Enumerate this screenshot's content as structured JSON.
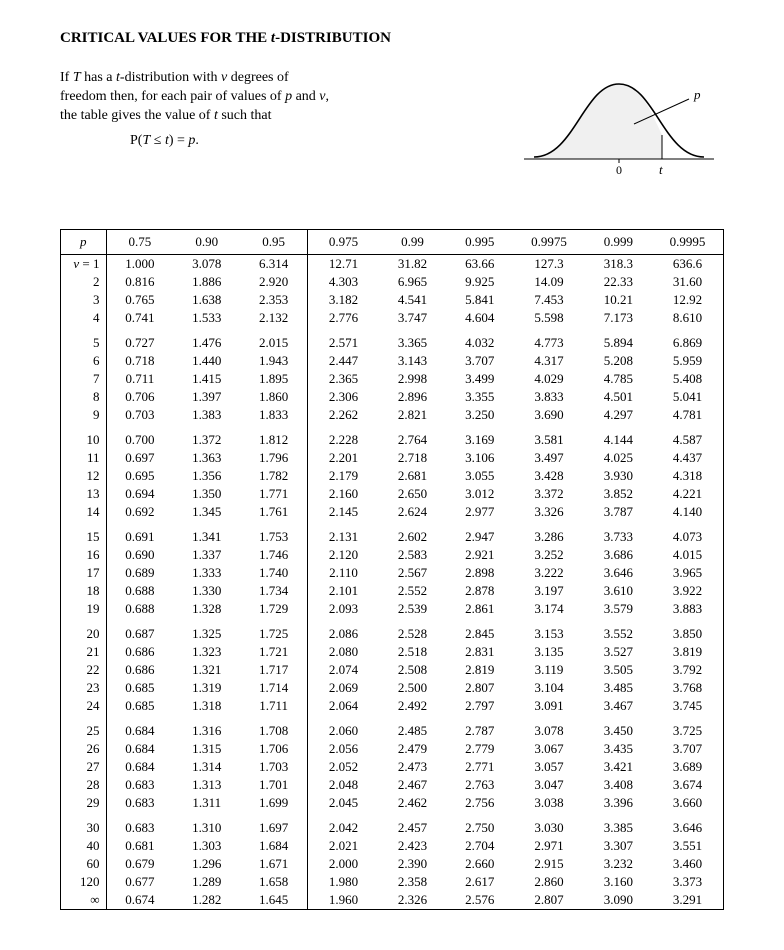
{
  "title_html": "CRITICAL VALUES FOR THE <i>t</i>-DISTRIBUTION",
  "intro": {
    "line1_html": "If <i>T</i> has a <i>t</i>-distribution with <i>v</i> degrees of",
    "line2_html": "freedom then, for each pair of values of <i>p</i> and <i>v</i>,",
    "line3_html": "the table gives the value of <i>t</i> such that",
    "equation_html": "P(<i>T</i> ≤ <i>t</i>) = <i>p</i>."
  },
  "curve": {
    "axis_0": "0",
    "axis_t": "t",
    "label_p": "p",
    "stroke": "#000000",
    "fill": "none"
  },
  "table": {
    "header_p": "p",
    "columns": [
      "0.75",
      "0.90",
      "0.95",
      "0.975",
      "0.99",
      "0.995",
      "0.9975",
      "0.999",
      "0.9995"
    ],
    "nu_prefix_html": "<span class=\"nu-label\">v</span> = ",
    "infinity": "∞",
    "groups": [
      {
        "rows": [
          {
            "nu": "1",
            "v": [
              "1.000",
              "3.078",
              "6.314",
              "12.71",
              "31.82",
              "63.66",
              "127.3",
              "318.3",
              "636.6"
            ]
          },
          {
            "nu": "2",
            "v": [
              "0.816",
              "1.886",
              "2.920",
              "4.303",
              "6.965",
              "9.925",
              "14.09",
              "22.33",
              "31.60"
            ]
          },
          {
            "nu": "3",
            "v": [
              "0.765",
              "1.638",
              "2.353",
              "3.182",
              "4.541",
              "5.841",
              "7.453",
              "10.21",
              "12.92"
            ]
          },
          {
            "nu": "4",
            "v": [
              "0.741",
              "1.533",
              "2.132",
              "2.776",
              "3.747",
              "4.604",
              "5.598",
              "7.173",
              "8.610"
            ]
          }
        ]
      },
      {
        "rows": [
          {
            "nu": "5",
            "v": [
              "0.727",
              "1.476",
              "2.015",
              "2.571",
              "3.365",
              "4.032",
              "4.773",
              "5.894",
              "6.869"
            ]
          },
          {
            "nu": "6",
            "v": [
              "0.718",
              "1.440",
              "1.943",
              "2.447",
              "3.143",
              "3.707",
              "4.317",
              "5.208",
              "5.959"
            ]
          },
          {
            "nu": "7",
            "v": [
              "0.711",
              "1.415",
              "1.895",
              "2.365",
              "2.998",
              "3.499",
              "4.029",
              "4.785",
              "5.408"
            ]
          },
          {
            "nu": "8",
            "v": [
              "0.706",
              "1.397",
              "1.860",
              "2.306",
              "2.896",
              "3.355",
              "3.833",
              "4.501",
              "5.041"
            ]
          },
          {
            "nu": "9",
            "v": [
              "0.703",
              "1.383",
              "1.833",
              "2.262",
              "2.821",
              "3.250",
              "3.690",
              "4.297",
              "4.781"
            ]
          }
        ]
      },
      {
        "rows": [
          {
            "nu": "10",
            "v": [
              "0.700",
              "1.372",
              "1.812",
              "2.228",
              "2.764",
              "3.169",
              "3.581",
              "4.144",
              "4.587"
            ]
          },
          {
            "nu": "11",
            "v": [
              "0.697",
              "1.363",
              "1.796",
              "2.201",
              "2.718",
              "3.106",
              "3.497",
              "4.025",
              "4.437"
            ]
          },
          {
            "nu": "12",
            "v": [
              "0.695",
              "1.356",
              "1.782",
              "2.179",
              "2.681",
              "3.055",
              "3.428",
              "3.930",
              "4.318"
            ]
          },
          {
            "nu": "13",
            "v": [
              "0.694",
              "1.350",
              "1.771",
              "2.160",
              "2.650",
              "3.012",
              "3.372",
              "3.852",
              "4.221"
            ]
          },
          {
            "nu": "14",
            "v": [
              "0.692",
              "1.345",
              "1.761",
              "2.145",
              "2.624",
              "2.977",
              "3.326",
              "3.787",
              "4.140"
            ]
          }
        ]
      },
      {
        "rows": [
          {
            "nu": "15",
            "v": [
              "0.691",
              "1.341",
              "1.753",
              "2.131",
              "2.602",
              "2.947",
              "3.286",
              "3.733",
              "4.073"
            ]
          },
          {
            "nu": "16",
            "v": [
              "0.690",
              "1.337",
              "1.746",
              "2.120",
              "2.583",
              "2.921",
              "3.252",
              "3.686",
              "4.015"
            ]
          },
          {
            "nu": "17",
            "v": [
              "0.689",
              "1.333",
              "1.740",
              "2.110",
              "2.567",
              "2.898",
              "3.222",
              "3.646",
              "3.965"
            ]
          },
          {
            "nu": "18",
            "v": [
              "0.688",
              "1.330",
              "1.734",
              "2.101",
              "2.552",
              "2.878",
              "3.197",
              "3.610",
              "3.922"
            ]
          },
          {
            "nu": "19",
            "v": [
              "0.688",
              "1.328",
              "1.729",
              "2.093",
              "2.539",
              "2.861",
              "3.174",
              "3.579",
              "3.883"
            ]
          }
        ]
      },
      {
        "rows": [
          {
            "nu": "20",
            "v": [
              "0.687",
              "1.325",
              "1.725",
              "2.086",
              "2.528",
              "2.845",
              "3.153",
              "3.552",
              "3.850"
            ]
          },
          {
            "nu": "21",
            "v": [
              "0.686",
              "1.323",
              "1.721",
              "2.080",
              "2.518",
              "2.831",
              "3.135",
              "3.527",
              "3.819"
            ]
          },
          {
            "nu": "22",
            "v": [
              "0.686",
              "1.321",
              "1.717",
              "2.074",
              "2.508",
              "2.819",
              "3.119",
              "3.505",
              "3.792"
            ]
          },
          {
            "nu": "23",
            "v": [
              "0.685",
              "1.319",
              "1.714",
              "2.069",
              "2.500",
              "2.807",
              "3.104",
              "3.485",
              "3.768"
            ]
          },
          {
            "nu": "24",
            "v": [
              "0.685",
              "1.318",
              "1.711",
              "2.064",
              "2.492",
              "2.797",
              "3.091",
              "3.467",
              "3.745"
            ]
          }
        ]
      },
      {
        "rows": [
          {
            "nu": "25",
            "v": [
              "0.684",
              "1.316",
              "1.708",
              "2.060",
              "2.485",
              "2.787",
              "3.078",
              "3.450",
              "3.725"
            ]
          },
          {
            "nu": "26",
            "v": [
              "0.684",
              "1.315",
              "1.706",
              "2.056",
              "2.479",
              "2.779",
              "3.067",
              "3.435",
              "3.707"
            ]
          },
          {
            "nu": "27",
            "v": [
              "0.684",
              "1.314",
              "1.703",
              "2.052",
              "2.473",
              "2.771",
              "3.057",
              "3.421",
              "3.689"
            ]
          },
          {
            "nu": "28",
            "v": [
              "0.683",
              "1.313",
              "1.701",
              "2.048",
              "2.467",
              "2.763",
              "3.047",
              "3.408",
              "3.674"
            ]
          },
          {
            "nu": "29",
            "v": [
              "0.683",
              "1.311",
              "1.699",
              "2.045",
              "2.462",
              "2.756",
              "3.038",
              "3.396",
              "3.660"
            ]
          }
        ]
      },
      {
        "rows": [
          {
            "nu": "30",
            "v": [
              "0.683",
              "1.310",
              "1.697",
              "2.042",
              "2.457",
              "2.750",
              "3.030",
              "3.385",
              "3.646"
            ]
          },
          {
            "nu": "40",
            "v": [
              "0.681",
              "1.303",
              "1.684",
              "2.021",
              "2.423",
              "2.704",
              "2.971",
              "3.307",
              "3.551"
            ]
          },
          {
            "nu": "60",
            "v": [
              "0.679",
              "1.296",
              "1.671",
              "2.000",
              "2.390",
              "2.660",
              "2.915",
              "3.232",
              "3.460"
            ]
          },
          {
            "nu": "120",
            "v": [
              "0.677",
              "1.289",
              "1.658",
              "1.980",
              "2.358",
              "2.617",
              "2.860",
              "3.160",
              "3.373"
            ]
          },
          {
            "nu": "INF",
            "v": [
              "0.674",
              "1.282",
              "1.645",
              "1.960",
              "2.326",
              "2.576",
              "2.807",
              "3.090",
              "3.291"
            ]
          }
        ]
      }
    ]
  }
}
